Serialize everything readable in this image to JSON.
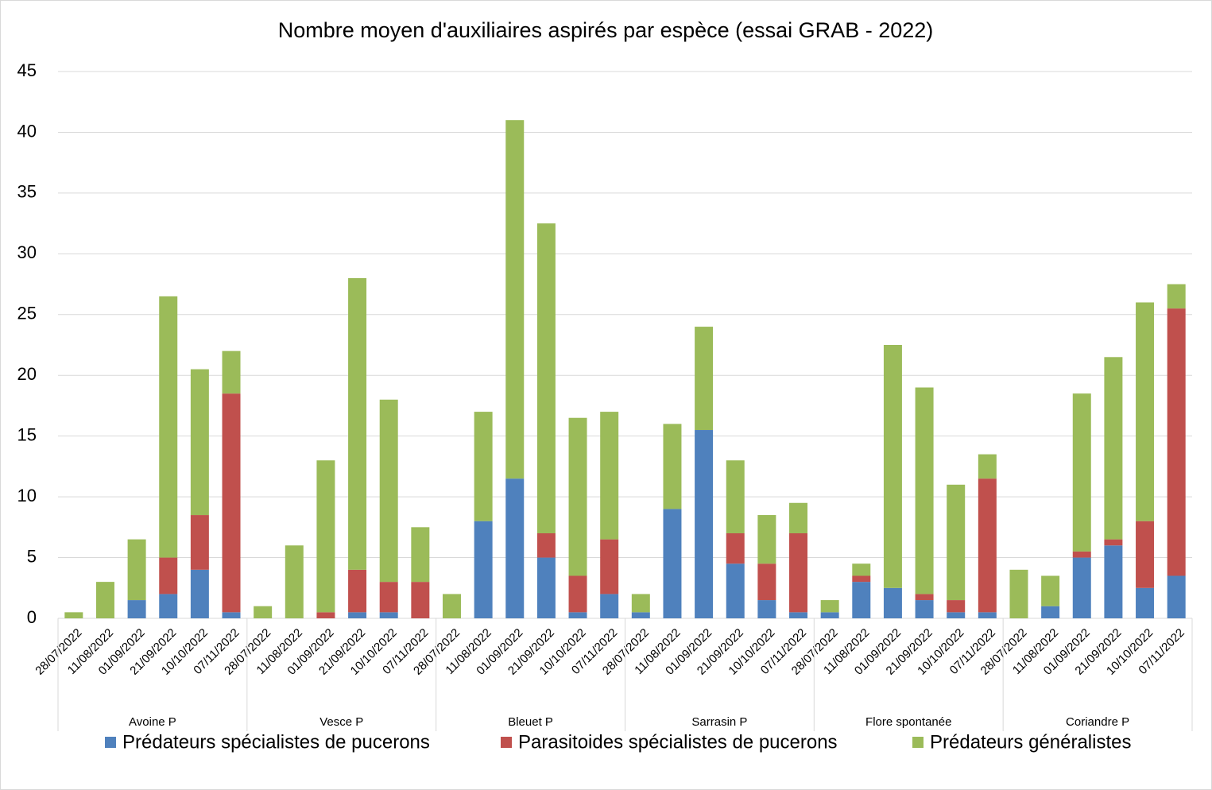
{
  "chart_data": {
    "type": "stacked_bar",
    "title": "Nombre moyen d'auxiliaires aspirés par espèce (essai GRAB - 2022)",
    "groups": [
      "Avoine P",
      "Vesce P",
      "Bleuet P",
      "Sarrasin P",
      "Flore spontanée",
      "Coriandre P"
    ],
    "categories": [
      "28/07/2022",
      "11/08/2022",
      "01/09/2022",
      "21/09/2022",
      "10/10/2022",
      "07/11/2022",
      "28/07/2022",
      "11/08/2022",
      "01/09/2022",
      "21/09/2022",
      "10/10/2022",
      "07/11/2022",
      "28/07/2022",
      "11/08/2022",
      "01/09/2022",
      "21/09/2022",
      "10/10/2022",
      "07/11/2022",
      "28/07/2022",
      "11/08/2022",
      "01/09/2022",
      "21/09/2022",
      "10/10/2022",
      "07/11/2022",
      "28/07/2022",
      "11/08/2022",
      "01/09/2022",
      "21/09/2022",
      "10/10/2022",
      "07/11/2022",
      "28/07/2022",
      "11/08/2022",
      "01/09/2022",
      "21/09/2022",
      "10/10/2022",
      "07/11/2022"
    ],
    "series": [
      {
        "name": "Prédateurs spécialistes de pucerons",
        "color": "#4f81bd",
        "values": [
          0,
          0,
          1.5,
          2,
          4,
          0.5,
          0,
          0,
          0,
          0.5,
          0.5,
          0,
          0,
          8,
          11.5,
          5,
          0.5,
          2,
          0.5,
          9,
          15.5,
          4.5,
          1.5,
          0.5,
          0.5,
          3,
          2.5,
          1.5,
          0.5,
          0.5,
          0,
          1,
          5,
          6,
          2.5,
          3.5
        ]
      },
      {
        "name": "Parasitoides spécialistes de pucerons",
        "color": "#c0504d",
        "values": [
          0,
          0,
          0,
          3,
          4.5,
          18,
          0,
          0,
          0.5,
          3.5,
          2.5,
          3,
          0,
          0,
          0,
          2,
          3,
          4.5,
          0,
          0,
          0,
          2.5,
          3,
          6.5,
          0,
          0.5,
          0,
          0.5,
          1,
          11,
          0,
          0,
          0.5,
          0.5,
          5.5,
          22
        ]
      },
      {
        "name": "Prédateurs généralistes",
        "color": "#9bbb59",
        "values": [
          0.5,
          3,
          5,
          21.5,
          12,
          3.5,
          1,
          6,
          12.5,
          24,
          15,
          4.5,
          2,
          9,
          29.5,
          25.5,
          13,
          10.5,
          1.5,
          7,
          8.5,
          6,
          4,
          2.5,
          1,
          1,
          20,
          17,
          9.5,
          2,
          4,
          2.5,
          13,
          15,
          18,
          2
        ]
      }
    ],
    "ylim": [
      0,
      45
    ],
    "yticks": [
      0,
      5,
      10,
      15,
      20,
      25,
      30,
      35,
      40,
      45
    ],
    "grid": true,
    "legend": "bottom"
  }
}
